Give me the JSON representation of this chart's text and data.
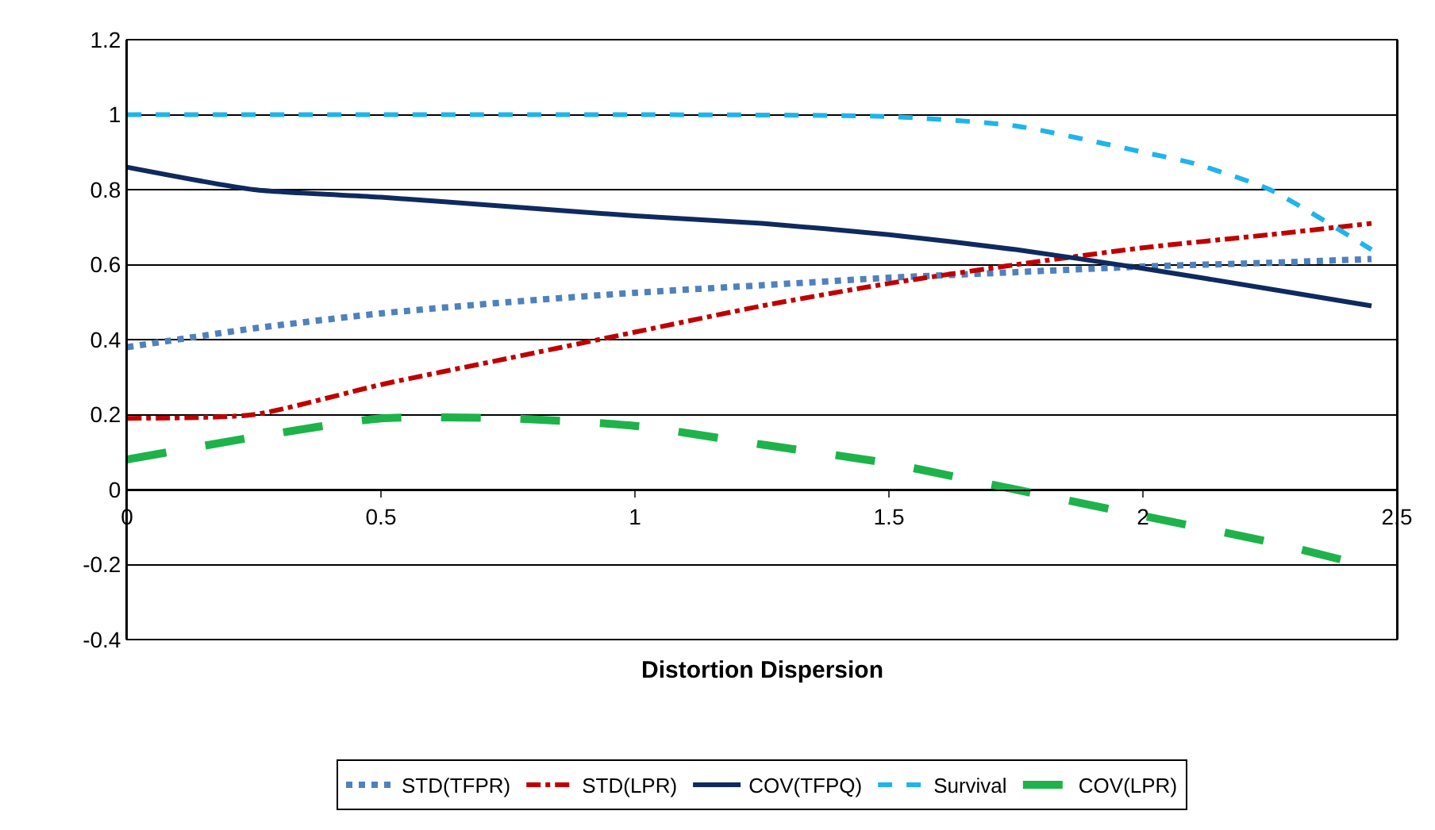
{
  "chart_data": {
    "type": "line",
    "xlabel": "Distortion Dispersion",
    "xlim": [
      0,
      2.5
    ],
    "xticks": [
      0,
      0.5,
      1,
      1.5,
      2,
      2.5
    ],
    "ylim": [
      -0.4,
      1.2
    ],
    "yticks": [
      -0.4,
      -0.2,
      0,
      0.2,
      0.4,
      0.6,
      0.8,
      1,
      1.2
    ],
    "grid": "y",
    "legend": "bottom",
    "marker": "none",
    "x": [
      0,
      0.25,
      0.5,
      0.75,
      1,
      1.25,
      1.5,
      1.75,
      2,
      2.25,
      2.45
    ],
    "series": [
      {
        "name": "STD(TFPR)",
        "color": "#4f81bd",
        "line_style": "dotted",
        "values": [
          0.38,
          0.43,
          0.47,
          0.5,
          0.525,
          0.545,
          0.565,
          0.58,
          0.595,
          0.605,
          0.615
        ]
      },
      {
        "name": "STD(LPR)",
        "color": "#c00000",
        "line_style": "dashdot",
        "values": [
          0.19,
          0.2,
          0.28,
          0.35,
          0.42,
          0.49,
          0.55,
          0.6,
          0.645,
          0.68,
          0.71
        ]
      },
      {
        "name": "COV(TFPQ)",
        "color": "#0f2a5e",
        "line_style": "solid",
        "values": [
          0.86,
          0.8,
          0.78,
          0.755,
          0.73,
          0.71,
          0.68,
          0.64,
          0.59,
          0.535,
          0.49
        ]
      },
      {
        "name": "Survival",
        "color": "#1fb4ea",
        "line_style": "dashed",
        "x": [
          0,
          0.5,
          1,
          1.5,
          1.75,
          2,
          2.1,
          2.25,
          2.45
        ],
        "values": [
          1,
          1,
          1,
          0.995,
          0.97,
          0.9,
          0.87,
          0.8,
          0.64
        ]
      },
      {
        "name": "COV(LPR)",
        "color": "#1db34a",
        "line_style": "longdash",
        "x": [
          0,
          0.25,
          0.5,
          0.75,
          1,
          1.25,
          1.5,
          1.75,
          2,
          2.25,
          2.4
        ],
        "values": [
          0.08,
          0.14,
          0.19,
          0.19,
          0.17,
          0.12,
          0.07,
          0,
          -0.07,
          -0.14,
          -0.19
        ]
      }
    ]
  }
}
